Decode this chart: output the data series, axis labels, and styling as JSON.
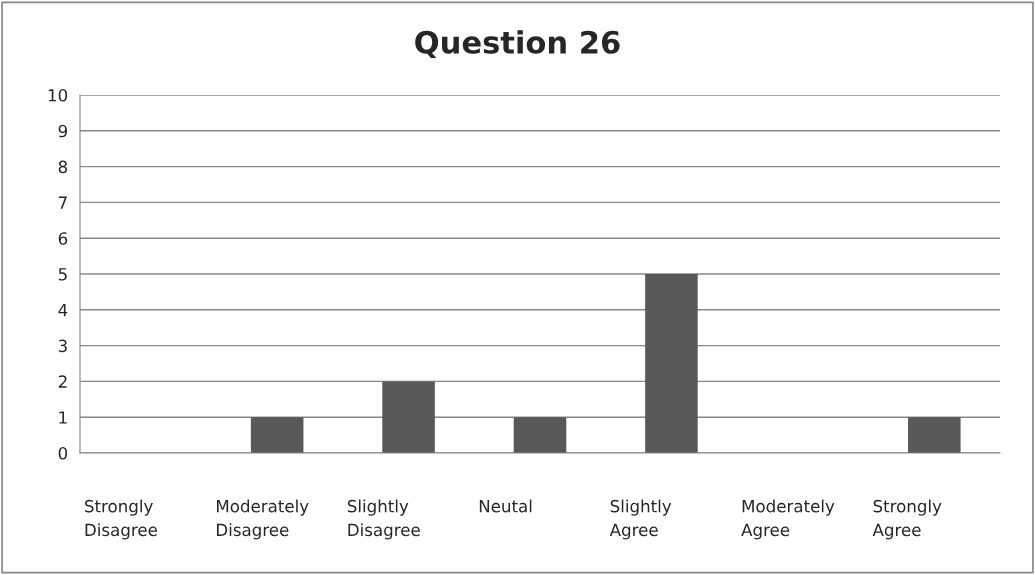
{
  "chart_data": {
    "type": "bar",
    "title": "Question 26",
    "categories": [
      "Strongly\nDisagree",
      "Moderately\nDisagree",
      "Slightly\nDisagree",
      "Neutal",
      "Slightly\nAgree",
      "Moderately\nAgree",
      "Strongly\nAgree"
    ],
    "values": [
      0,
      1,
      2,
      1,
      5,
      0,
      1
    ],
    "color": "#595959",
    "ylim": [
      0,
      10
    ],
    "yticks": [
      0,
      1,
      2,
      3,
      4,
      5,
      6,
      7,
      8,
      9,
      10
    ],
    "grid": "y",
    "legend": false
  }
}
